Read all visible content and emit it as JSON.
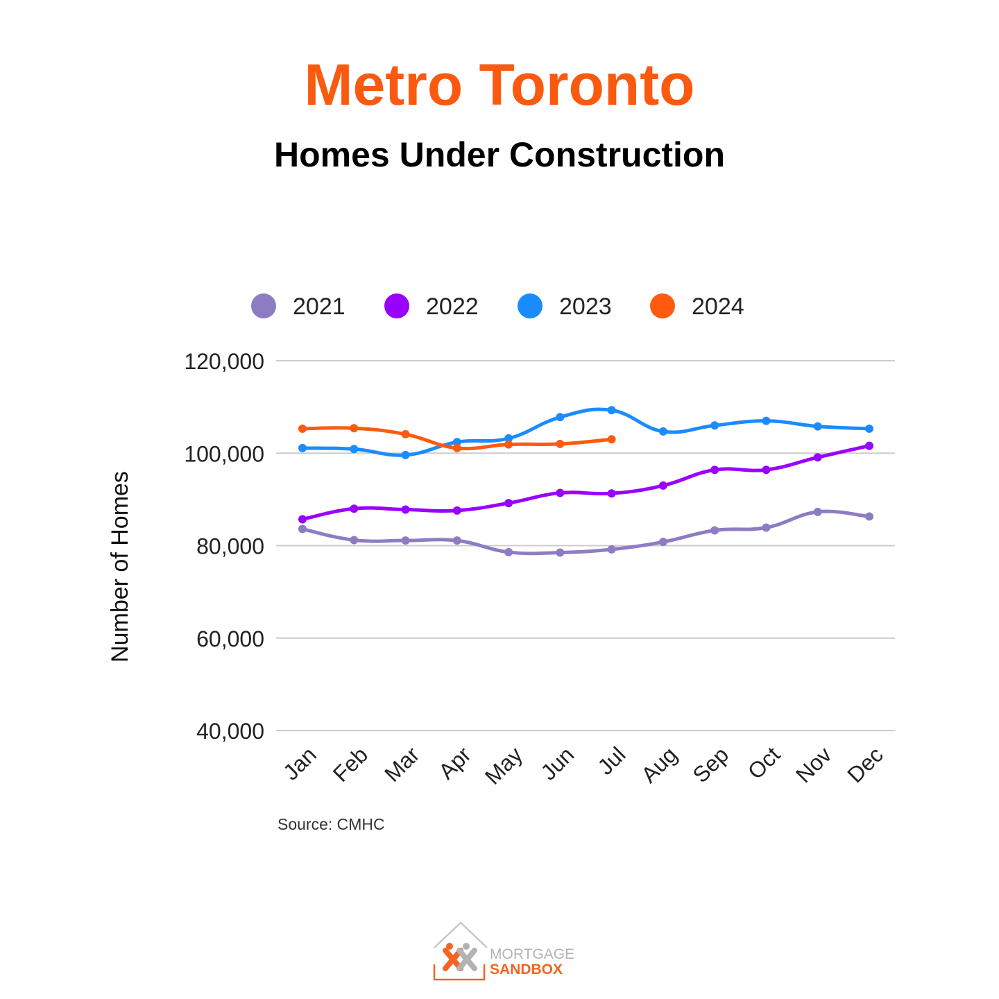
{
  "header": {
    "title": "Metro Toronto",
    "subtitle": "Homes Under Construction"
  },
  "chart_data": {
    "type": "line",
    "categories": [
      "Jan",
      "Feb",
      "Mar",
      "Apr",
      "May",
      "Jun",
      "Jul",
      "Aug",
      "Sep",
      "Oct",
      "Nov",
      "Dec"
    ],
    "ylabel": "Number of Homes",
    "ylim": [
      40000,
      120000
    ],
    "yticks": [
      40000,
      60000,
      80000,
      100000,
      120000
    ],
    "ytick_labels": [
      "40,000",
      "60,000",
      "80,000",
      "100,000",
      "120,000"
    ],
    "grid": true,
    "legend_position": "top",
    "smooth": true,
    "series": [
      {
        "name": "2021",
        "color": "#8e7cc3",
        "values": [
          83600,
          81200,
          81100,
          81100,
          78600,
          78500,
          79200,
          80800,
          83300,
          83900,
          87300,
          86300
        ]
      },
      {
        "name": "2022",
        "color": "#9900ff",
        "values": [
          85700,
          88000,
          87800,
          87600,
          89200,
          91400,
          91300,
          93000,
          96400,
          96400,
          99100,
          101600
        ]
      },
      {
        "name": "2023",
        "color": "#1a8cff",
        "values": [
          101100,
          100900,
          99600,
          102400,
          103200,
          107800,
          109300,
          104700,
          106000,
          107000,
          105800,
          105300
        ]
      },
      {
        "name": "2024",
        "color": "#ff5a0f",
        "values": [
          105300,
          105400,
          104100,
          101100,
          101900,
          102000,
          103000,
          null,
          null,
          null,
          null,
          null
        ]
      }
    ],
    "source": "Source: CMHC"
  },
  "brand": {
    "line1": "MORTGAGE",
    "line2": "SANDBOX",
    "orange": "#f26522",
    "grey": "#b3b3b3"
  }
}
